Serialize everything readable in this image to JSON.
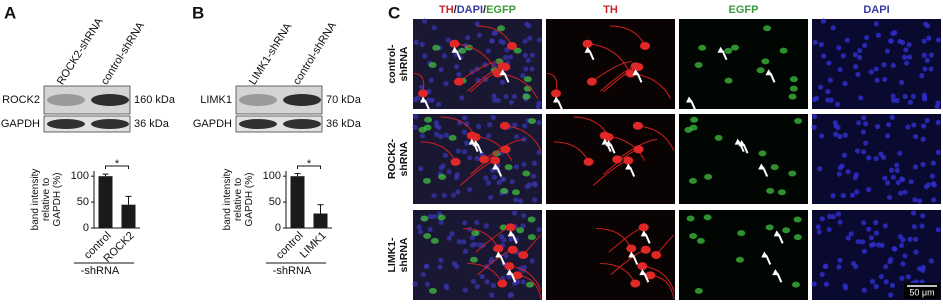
{
  "panel_labels": [
    "A",
    "B",
    "C"
  ],
  "blots": [
    {
      "lanes": [
        "ROCK2-shRNA",
        "control-shRNA"
      ],
      "bands": [
        {
          "name": "ROCK2",
          "size": "160 kDa"
        },
        {
          "name": "GAPDH",
          "size": "36 kDa"
        }
      ]
    },
    {
      "lanes": [
        "LIMK1-shRNA",
        "control-shRNA"
      ],
      "bands": [
        {
          "name": "LIMK1",
          "size": "70 kDa"
        },
        {
          "name": "GAPDH",
          "size": "36 kDa"
        }
      ]
    }
  ],
  "chart_data": [
    {
      "type": "bar",
      "ylabel": [
        "band intensity",
        "relative to",
        "GAPDH (%)"
      ],
      "categories": [
        "control",
        "ROCK2"
      ],
      "values": [
        100,
        45
      ],
      "errors": [
        4,
        16
      ],
      "xlabel": "-shRNA",
      "significance": "*",
      "color": "#1a1a1a",
      "ylim": [
        0,
        110
      ],
      "yticks": [
        0,
        50,
        100
      ]
    },
    {
      "type": "bar",
      "ylabel": [
        "band intensity",
        "relative to",
        "GAPDH (%)"
      ],
      "categories": [
        "control",
        "LIMK1"
      ],
      "values": [
        100,
        28
      ],
      "errors": [
        5,
        17
      ],
      "xlabel": "-shRNA",
      "significance": "*",
      "color": "#1a1a1a",
      "ylim": [
        0,
        110
      ],
      "yticks": [
        0,
        50,
        100
      ]
    }
  ],
  "micrograph": {
    "columns": [
      [
        {
          "text": "TH",
          "color": "#c8282d"
        },
        {
          "text": "/",
          "color": "#222222"
        },
        {
          "text": "DAPI",
          "color": "#3a3aa0"
        },
        {
          "text": "/",
          "color": "#222222"
        },
        {
          "text": "EGFP",
          "color": "#3a9a3a"
        }
      ],
      [
        {
          "text": "TH",
          "color": "#c8282d"
        }
      ],
      [
        {
          "text": "EGFP",
          "color": "#3a9a3a"
        }
      ],
      [
        {
          "text": "DAPI",
          "color": "#3a3aa0"
        }
      ]
    ],
    "rows": [
      [
        "control-",
        "shRNA"
      ],
      [
        "ROCK2-",
        "shRNA"
      ],
      [
        "LIMK1-",
        "shRNA"
      ]
    ],
    "scale_bar": "50 μm"
  }
}
